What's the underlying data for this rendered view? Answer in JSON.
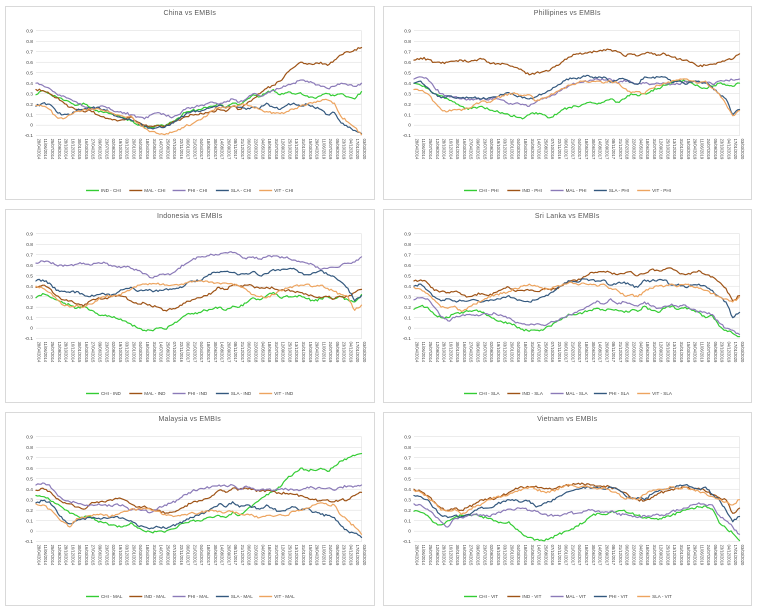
{
  "styles": {
    "background": "#FFFFFF",
    "grid_color": "#D9D9D9",
    "border_color": "#D9D9D9",
    "axis_text_color": "#404040",
    "title_color": "#595959"
  },
  "axis": {
    "ylim": [
      -0.1,
      0.9
    ],
    "y_tick_labels": [
      "0.9",
      "0.8",
      "0.7",
      "0.6",
      "0.5",
      "0.4",
      "0.3",
      "0.2",
      "0.1",
      "0",
      "-0.1"
    ],
    "y_tick_values": [
      0.9,
      0.8,
      0.7,
      0.6,
      0.5,
      0.4,
      0.3,
      0.2,
      0.1,
      0,
      -0.1
    ],
    "grid": true,
    "legend_position": "bottom"
  },
  "categories": [
    "28/04/2014",
    "11/06/2014",
    "25/07/2014",
    "12/09/2014",
    "28/10/2014",
    "16/12/2014",
    "30/01/2015",
    "16/03/2015",
    "27/04/2015",
    "09/06/2015",
    "23/07/2015",
    "02/09/2015",
    "19/10/2015",
    "03/12/2015",
    "20/01/2016",
    "04/03/2016",
    "18/04/2016",
    "31/05/2016",
    "14/07/2016",
    "25/08/2016",
    "07/10/2016",
    "22/11/2016",
    "06/01/2017",
    "21/02/2017",
    "04/04/2017",
    "18/05/2017",
    "30/06/2017",
    "14/08/2017",
    "26/09/2017",
    "08/11/2017",
    "21/12/2017",
    "06/02/2018",
    "22/03/2018",
    "04/05/2018",
    "18/06/2018",
    "31/07/2018",
    "12/09/2018",
    "25/10/2018",
    "13/12/2018",
    "31/01/2019",
    "15/03/2019",
    "29/04/2019",
    "11/06/2019",
    "24/07/2019",
    "05/09/2019",
    "23/10/2019",
    "04/12/2019",
    "17/01/2020",
    "03/03/2020"
  ],
  "pairs": {
    "CHI_IND": [
      0.29,
      0.33,
      0.3,
      0.27,
      0.24,
      0.22,
      0.19,
      0.21,
      0.17,
      0.14,
      0.12,
      0.11,
      0.09,
      0.07,
      0.04,
      0.0,
      -0.02,
      -0.02,
      0.0,
      -0.01,
      0.03,
      0.07,
      0.12,
      0.14,
      0.15,
      0.17,
      0.18,
      0.2,
      0.17,
      0.21,
      0.2,
      0.24,
      0.29,
      0.27,
      0.31,
      0.34,
      0.29,
      0.31,
      0.3,
      0.31,
      0.28,
      0.26,
      0.28,
      0.3,
      0.28,
      0.3,
      0.27,
      0.25,
      0.32
    ],
    "CHI_MAL": [
      0.34,
      0.33,
      0.3,
      0.26,
      0.22,
      0.17,
      0.15,
      0.13,
      0.14,
      0.1,
      0.08,
      0.06,
      0.04,
      0.05,
      0.08,
      0.03,
      0.0,
      -0.01,
      0.0,
      -0.01,
      0.02,
      0.05,
      0.08,
      0.1,
      0.1,
      0.12,
      0.13,
      0.15,
      0.13,
      0.18,
      0.15,
      0.2,
      0.25,
      0.3,
      0.35,
      0.38,
      0.42,
      0.5,
      0.55,
      0.6,
      0.58,
      0.58,
      0.6,
      0.57,
      0.62,
      0.67,
      0.7,
      0.72,
      0.74
    ],
    "CHI_PHI": [
      0.4,
      0.38,
      0.35,
      0.3,
      0.28,
      0.25,
      0.22,
      0.18,
      0.15,
      0.17,
      0.18,
      0.15,
      0.13,
      0.12,
      0.1,
      0.08,
      0.06,
      0.1,
      0.12,
      0.1,
      0.07,
      0.1,
      0.15,
      0.17,
      0.18,
      0.2,
      0.22,
      0.2,
      0.22,
      0.25,
      0.22,
      0.25,
      0.3,
      0.28,
      0.3,
      0.33,
      0.35,
      0.38,
      0.4,
      0.43,
      0.42,
      0.4,
      0.37,
      0.35,
      0.37,
      0.4,
      0.38,
      0.37,
      0.4
    ],
    "CHI_SLA": [
      0.18,
      0.21,
      0.2,
      0.13,
      0.1,
      0.1,
      0.14,
      0.15,
      0.16,
      0.17,
      0.15,
      0.12,
      0.08,
      0.06,
      0.05,
      0.02,
      -0.01,
      -0.03,
      -0.02,
      -0.02,
      0.02,
      0.06,
      0.1,
      0.13,
      0.13,
      0.15,
      0.17,
      0.19,
      0.17,
      0.18,
      0.17,
      0.15,
      0.17,
      0.16,
      0.21,
      0.17,
      0.15,
      0.19,
      0.21,
      0.18,
      0.2,
      0.17,
      0.15,
      0.1,
      0.12,
      0.02,
      -0.02,
      -0.05,
      -0.08
    ],
    "CHI_VIT": [
      0.19,
      0.18,
      0.15,
      0.08,
      0.06,
      0.1,
      0.13,
      0.15,
      0.15,
      0.16,
      0.14,
      0.12,
      0.1,
      0.08,
      0.09,
      0.02,
      -0.03,
      -0.06,
      -0.08,
      -0.09,
      -0.07,
      -0.04,
      -0.01,
      0.01,
      0.05,
      0.08,
      0.14,
      0.17,
      0.16,
      0.18,
      0.19,
      0.2,
      0.17,
      0.15,
      0.13,
      0.12,
      0.11,
      0.13,
      0.15,
      0.18,
      0.2,
      0.22,
      0.23,
      0.24,
      0.21,
      0.08,
      0.03,
      -0.02,
      -0.09
    ],
    "IND_MAL": [
      0.39,
      0.41,
      0.38,
      0.31,
      0.27,
      0.26,
      0.23,
      0.21,
      0.26,
      0.28,
      0.28,
      0.3,
      0.31,
      0.3,
      0.26,
      0.23,
      0.24,
      0.21,
      0.2,
      0.17,
      0.18,
      0.2,
      0.24,
      0.27,
      0.29,
      0.31,
      0.34,
      0.39,
      0.37,
      0.41,
      0.4,
      0.41,
      0.4,
      0.38,
      0.39,
      0.38,
      0.36,
      0.36,
      0.35,
      0.34,
      0.32,
      0.3,
      0.29,
      0.3,
      0.28,
      0.3,
      0.3,
      0.34,
      0.37
    ],
    "IND_PHI": [
      0.62,
      0.64,
      0.63,
      0.6,
      0.59,
      0.6,
      0.61,
      0.62,
      0.6,
      0.62,
      0.63,
      0.6,
      0.58,
      0.59,
      0.57,
      0.55,
      0.52,
      0.48,
      0.5,
      0.51,
      0.52,
      0.57,
      0.61,
      0.65,
      0.68,
      0.68,
      0.7,
      0.7,
      0.72,
      0.72,
      0.7,
      0.66,
      0.68,
      0.66,
      0.68,
      0.69,
      0.67,
      0.68,
      0.65,
      0.63,
      0.62,
      0.6,
      0.56,
      0.57,
      0.58,
      0.6,
      0.62,
      0.63,
      0.68
    ],
    "IND_SLA": [
      0.45,
      0.46,
      0.43,
      0.36,
      0.35,
      0.34,
      0.35,
      0.32,
      0.3,
      0.32,
      0.33,
      0.31,
      0.34,
      0.37,
      0.39,
      0.35,
      0.36,
      0.36,
      0.35,
      0.37,
      0.37,
      0.38,
      0.41,
      0.45,
      0.45,
      0.49,
      0.53,
      0.53,
      0.54,
      0.53,
      0.51,
      0.52,
      0.54,
      0.5,
      0.52,
      0.56,
      0.55,
      0.56,
      0.57,
      0.53,
      0.51,
      0.53,
      0.55,
      0.51,
      0.49,
      0.44,
      0.38,
      0.26,
      0.31
    ],
    "IND_VIT": [
      0.4,
      0.38,
      0.34,
      0.28,
      0.22,
      0.2,
      0.22,
      0.2,
      0.23,
      0.26,
      0.3,
      0.31,
      0.31,
      0.34,
      0.37,
      0.41,
      0.42,
      0.42,
      0.43,
      0.41,
      0.41,
      0.41,
      0.43,
      0.44,
      0.45,
      0.45,
      0.44,
      0.43,
      0.43,
      0.42,
      0.4,
      0.37,
      0.32,
      0.3,
      0.29,
      0.32,
      0.36,
      0.38,
      0.4,
      0.41,
      0.42,
      0.4,
      0.41,
      0.38,
      0.35,
      0.32,
      0.3,
      0.17,
      0.22
    ],
    "MAL_PHI": [
      0.44,
      0.46,
      0.44,
      0.36,
      0.3,
      0.28,
      0.27,
      0.25,
      0.25,
      0.25,
      0.25,
      0.24,
      0.26,
      0.24,
      0.2,
      0.21,
      0.2,
      0.18,
      0.22,
      0.25,
      0.27,
      0.3,
      0.35,
      0.38,
      0.4,
      0.41,
      0.43,
      0.44,
      0.43,
      0.44,
      0.4,
      0.43,
      0.41,
      0.39,
      0.4,
      0.39,
      0.4,
      0.4,
      0.39,
      0.39,
      0.42,
      0.41,
      0.41,
      0.41,
      0.39,
      0.42,
      0.43,
      0.43,
      0.44
    ],
    "MAL_SLA": [
      0.27,
      0.29,
      0.28,
      0.2,
      0.11,
      0.07,
      0.1,
      0.12,
      0.13,
      0.12,
      0.13,
      0.13,
      0.14,
      0.12,
      0.1,
      0.05,
      0.04,
      0.03,
      0.04,
      0.03,
      0.05,
      0.07,
      0.1,
      0.13,
      0.15,
      0.18,
      0.22,
      0.26,
      0.23,
      0.28,
      0.23,
      0.25,
      0.23,
      0.21,
      0.25,
      0.21,
      0.19,
      0.21,
      0.23,
      0.2,
      0.22,
      0.18,
      0.16,
      0.15,
      0.13,
      0.05,
      0.0,
      -0.02,
      -0.06
    ],
    "MAL_VIT": [
      0.26,
      0.25,
      0.21,
      0.15,
      0.09,
      0.04,
      0.12,
      0.13,
      0.15,
      0.16,
      0.15,
      0.14,
      0.16,
      0.19,
      0.21,
      0.21,
      0.22,
      0.2,
      0.19,
      0.16,
      0.15,
      0.15,
      0.16,
      0.18,
      0.17,
      0.19,
      0.2,
      0.19,
      0.18,
      0.19,
      0.16,
      0.16,
      0.15,
      0.13,
      0.15,
      0.14,
      0.16,
      0.15,
      0.19,
      0.2,
      0.22,
      0.25,
      0.27,
      0.25,
      0.25,
      0.15,
      0.1,
      0.04,
      -0.03
    ],
    "PHI_SLA": [
      0.4,
      0.42,
      0.36,
      0.3,
      0.26,
      0.28,
      0.26,
      0.26,
      0.26,
      0.27,
      0.25,
      0.26,
      0.27,
      0.29,
      0.31,
      0.28,
      0.26,
      0.25,
      0.27,
      0.3,
      0.33,
      0.37,
      0.42,
      0.45,
      0.44,
      0.47,
      0.46,
      0.45,
      0.46,
      0.41,
      0.43,
      0.44,
      0.41,
      0.39,
      0.46,
      0.45,
      0.46,
      0.46,
      0.41,
      0.42,
      0.39,
      0.41,
      0.42,
      0.4,
      0.36,
      0.3,
      0.25,
      0.1,
      0.15
    ],
    "PHI_VIT": [
      0.34,
      0.33,
      0.3,
      0.22,
      0.15,
      0.13,
      0.15,
      0.14,
      0.16,
      0.2,
      0.23,
      0.22,
      0.25,
      0.28,
      0.3,
      0.3,
      0.28,
      0.29,
      0.23,
      0.26,
      0.28,
      0.32,
      0.35,
      0.38,
      0.4,
      0.42,
      0.41,
      0.42,
      0.4,
      0.42,
      0.4,
      0.35,
      0.31,
      0.32,
      0.3,
      0.35,
      0.38,
      0.4,
      0.42,
      0.43,
      0.44,
      0.42,
      0.4,
      0.42,
      0.35,
      0.3,
      0.2,
      0.09,
      0.14
    ],
    "SLA_VIT": [
      0.39,
      0.37,
      0.33,
      0.27,
      0.2,
      0.19,
      0.21,
      0.16,
      0.2,
      0.23,
      0.26,
      0.3,
      0.32,
      0.33,
      0.35,
      0.38,
      0.4,
      0.42,
      0.4,
      0.38,
      0.37,
      0.4,
      0.42,
      0.44,
      0.42,
      0.43,
      0.42,
      0.4,
      0.42,
      0.38,
      0.36,
      0.31,
      0.32,
      0.3,
      0.35,
      0.38,
      0.4,
      0.4,
      0.42,
      0.4,
      0.42,
      0.4,
      0.38,
      0.36,
      0.33,
      0.3,
      0.28,
      0.25,
      0.3
    ]
  },
  "chart_data": [
    {
      "type": "line",
      "title": "China vs EMBIs",
      "xlabel": "",
      "ylabel": "",
      "ylim": [
        -0.1,
        0.9
      ],
      "series": [
        {
          "name": "IND - CHI",
          "pair": "CHI_IND",
          "color": "#33CC33"
        },
        {
          "name": "MAL - CHI",
          "pair": "CHI_MAL",
          "color": "#9E5316"
        },
        {
          "name": "PHI - CHI",
          "pair": "CHI_PHI",
          "color": "#8B7AB8"
        },
        {
          "name": "SLA - CHI",
          "pair": "CHI_SLA",
          "color": "#33587E"
        },
        {
          "name": "VIT - CHI",
          "pair": "CHI_VIT",
          "color": "#EDA45F"
        }
      ]
    },
    {
      "type": "line",
      "title": "Phillipines vs EMBIs",
      "xlabel": "",
      "ylabel": "",
      "ylim": [
        -0.1,
        0.9
      ],
      "series": [
        {
          "name": "CHI - PHI",
          "pair": "CHI_PHI",
          "color": "#33CC33"
        },
        {
          "name": "IND - PHI",
          "pair": "IND_PHI",
          "color": "#9E5316"
        },
        {
          "name": "MAL - PHI",
          "pair": "MAL_PHI",
          "color": "#8B7AB8"
        },
        {
          "name": "SLA - PHI",
          "pair": "PHI_SLA",
          "color": "#33587E"
        },
        {
          "name": "VIT - PHI",
          "pair": "PHI_VIT",
          "color": "#EDA45F"
        }
      ]
    },
    {
      "type": "line",
      "title": "Indonesia vs EMBIs",
      "xlabel": "",
      "ylabel": "",
      "ylim": [
        -0.1,
        0.9
      ],
      "series": [
        {
          "name": "CHI - IND",
          "pair": "CHI_IND",
          "color": "#33CC33"
        },
        {
          "name": "MAL - IND",
          "pair": "IND_MAL",
          "color": "#9E5316"
        },
        {
          "name": "PHI - IND",
          "pair": "IND_PHI",
          "color": "#8B7AB8"
        },
        {
          "name": "SLA - IND",
          "pair": "IND_SLA",
          "color": "#33587E"
        },
        {
          "name": "VIT - IND",
          "pair": "IND_VIT",
          "color": "#EDA45F"
        }
      ]
    },
    {
      "type": "line",
      "title": "Sri Lanka vs EMBIs",
      "xlabel": "",
      "ylabel": "",
      "ylim": [
        -0.1,
        0.9
      ],
      "series": [
        {
          "name": "CHI - SLA",
          "pair": "CHI_SLA",
          "color": "#33CC33"
        },
        {
          "name": "IND - SLA",
          "pair": "IND_SLA",
          "color": "#9E5316"
        },
        {
          "name": "MAL - SLA",
          "pair": "MAL_SLA",
          "color": "#8B7AB8"
        },
        {
          "name": "PHI - SLA",
          "pair": "PHI_SLA",
          "color": "#33587E"
        },
        {
          "name": "VIT - SLA",
          "pair": "SLA_VIT",
          "color": "#EDA45F"
        }
      ]
    },
    {
      "type": "line",
      "title": "Malaysia vs EMBIs",
      "xlabel": "",
      "ylabel": "",
      "ylim": [
        -0.1,
        0.9
      ],
      "series": [
        {
          "name": "CHI - MAL",
          "pair": "CHI_MAL",
          "color": "#33CC33"
        },
        {
          "name": "IND - MAL",
          "pair": "IND_MAL",
          "color": "#9E5316"
        },
        {
          "name": "PHI - MAL",
          "pair": "MAL_PHI",
          "color": "#8B7AB8"
        },
        {
          "name": "SLA - MAL",
          "pair": "MAL_SLA",
          "color": "#33587E"
        },
        {
          "name": "VIT - MAL",
          "pair": "MAL_VIT",
          "color": "#EDA45F"
        }
      ]
    },
    {
      "type": "line",
      "title": "Vietnam vs EMBIs",
      "xlabel": "",
      "ylabel": "",
      "ylim": [
        -0.1,
        0.9
      ],
      "series": [
        {
          "name": "CHI - VIT",
          "pair": "CHI_VIT",
          "color": "#33CC33"
        },
        {
          "name": "IND - VIT",
          "pair": "IND_VIT",
          "color": "#9E5316"
        },
        {
          "name": "MAL - VIT",
          "pair": "MAL_VIT",
          "color": "#8B7AB8"
        },
        {
          "name": "PHI - VIT",
          "pair": "PHI_VIT",
          "color": "#33587E"
        },
        {
          "name": "SLA - VIT",
          "pair": "SLA_VIT",
          "color": "#EDA45F"
        }
      ]
    }
  ]
}
